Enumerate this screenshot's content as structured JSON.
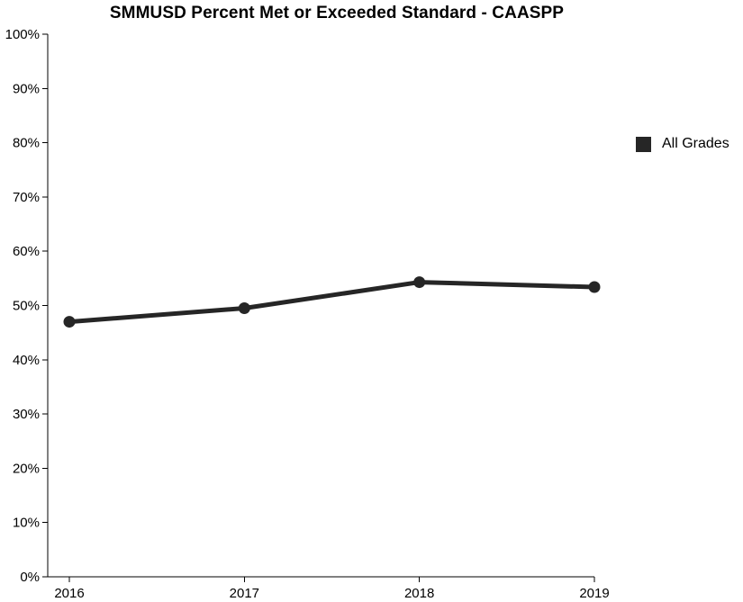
{
  "chart_data": {
    "type": "line",
    "title": "SMMUSD Percent Met or Exceeded Standard - CAASPP",
    "x": [
      "2016",
      "2017",
      "2018",
      "2019"
    ],
    "y_ticks": [
      "0%",
      "10%",
      "20%",
      "30%",
      "40%",
      "50%",
      "60%",
      "70%",
      "80%",
      "90%",
      "100%"
    ],
    "ylim": [
      0,
      100
    ],
    "xlabel": "",
    "ylabel": "",
    "grid": false,
    "legend_placement": "right",
    "series": [
      {
        "name": "All Grades",
        "values": [
          47,
          49.5,
          54.3,
          53.4
        ],
        "color": "#262626"
      }
    ]
  }
}
